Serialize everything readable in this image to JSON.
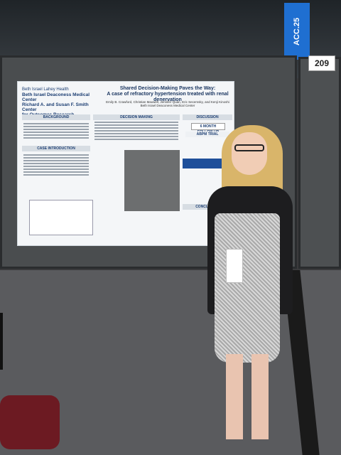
{
  "sign": {
    "acc": "ACC.25",
    "booth_number": "209"
  },
  "poster": {
    "org_line1": "Beth Israel Lahey Health",
    "org_line2": "Beth Israel Deaconess Medical Center",
    "org_line3": "Richard A. and Susan F. Smith Center",
    "org_line4": "for Outcomes Research",
    "title": "Shared Decision-Making Paves the Way:",
    "subtitle": "A case of refractory hypertension treated with renal denervation",
    "authors": "Emily B. Crawford, Christian Maxwell, Jennifer Quan, Eric Secemsky, and Kenji Kinoshi",
    "institution": "Beth Israel Deaconess Medical Center",
    "sections": {
      "background": "BACKGROUND",
      "case_intro": "CASE INTRODUCTION",
      "decision_making": "DECISION MAKING",
      "discussion": "DISCUSSION",
      "conclusion": "CONCLUSION",
      "followup": "6 MONTH FOLLOW-UP",
      "abpm": "ABPM TRIAL"
    }
  },
  "colors": {
    "accent": "#1e4f9a",
    "sign_blue": "#1f6fd1"
  }
}
